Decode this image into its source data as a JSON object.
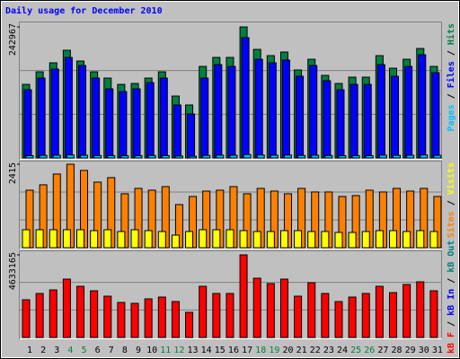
{
  "chart_data": {
    "type": "bar",
    "title": "Daily usage for December 2010",
    "categories": [
      "1",
      "2",
      "3",
      "4",
      "5",
      "6",
      "7",
      "8",
      "9",
      "10",
      "11",
      "12",
      "13",
      "14",
      "15",
      "16",
      "17",
      "18",
      "19",
      "20",
      "21",
      "22",
      "23",
      "24",
      "25",
      "26",
      "27",
      "28",
      "29",
      "30",
      "31"
    ],
    "highlight_categories": [
      3,
      4,
      10,
      11,
      17,
      18,
      24,
      25
    ],
    "highlight_color": "#008040",
    "legend_separator": " / ",
    "panels": [
      {
        "ylim": [
          0,
          242967
        ],
        "yticks": [
          242967
        ],
        "series": [
          {
            "name": "Pages",
            "color": "#00C0FF",
            "values": [
              4200,
              4800,
              5100,
              5600,
              4900,
              4500,
              4300,
              4000,
              4200,
              4600,
              4400,
              3500,
              3100,
              4700,
              5200,
              5000,
              6200,
              5400,
              5100,
              5300,
              4600,
              5000,
              4500,
              4100,
              4300,
              4200,
              5200,
              4800,
              5000,
              5500,
              4700
            ]
          },
          {
            "name": "Files",
            "color": "#0000FF",
            "values": [
              126500,
              148100,
              164700,
              186400,
              171400,
              148100,
              128100,
              123100,
              128100,
              139800,
              148100,
              98200,
              81500,
              148100,
              173100,
              169700,
              223000,
              183000,
              176400,
              181400,
              151400,
              171400,
              143100,
              126500,
              136400,
              136400,
              173100,
              151400,
              169700,
              191400,
              158100
            ]
          },
          {
            "name": "Hits",
            "color": "#008040",
            "values": [
              136400,
              159700,
              176400,
              199700,
              179700,
              159700,
              148100,
              136400,
              138100,
              148100,
              159700,
              114800,
              98200,
              169700,
              186400,
              186400,
              242967,
              201300,
              189700,
              196400,
              163100,
              183000,
              153100,
              138100,
              149800,
              149800,
              189700,
              166400,
              183000,
              203000,
              169700
            ]
          }
        ]
      },
      {
        "ylim": [
          0,
          2415
        ],
        "yticks": [
          2415
        ],
        "series": [
          {
            "name": "Sites",
            "color": "#FF8000",
            "values": [
              1664,
              1820,
              2132,
              2415,
              2236,
              1898,
              2028,
              1560,
              1716,
              1664,
              1768,
              1248,
              1482,
              1638,
              1664,
              1768,
              1560,
              1716,
              1638,
              1560,
              1716,
              1612,
              1612,
              1482,
              1508,
              1664,
              1612,
              1716,
              1638,
              1716,
              1482
            ]
          },
          {
            "name": "Visits",
            "color": "#FFFF00",
            "values": [
              520,
              520,
              520,
              520,
              520,
              494,
              520,
              468,
              520,
              494,
              468,
              364,
              468,
              520,
              520,
              520,
              494,
              468,
              468,
              494,
              494,
              468,
              468,
              442,
              442,
              468,
              494,
              494,
              468,
              494,
              468
            ]
          }
        ]
      },
      {
        "ylim": [
          0,
          4633165
        ],
        "yticks": [
          4633165
        ],
        "series": [
          {
            "name": "kB F",
            "color": "#FF0000",
            "values": [
              2115100,
              2467600,
              2669100,
              3273400,
              2870500,
              2618700,
              2316600,
              1964000,
              1913700,
              2165500,
              2266200,
              2014400,
              1410100,
              2870500,
              2467600,
              2467600,
              4633165,
              3323800,
              3021600,
              3273400,
              2316600,
              3072000,
              2467600,
              2014400,
              2266200,
              2467600,
              2870500,
              2518000,
              2971200,
              3122300,
              2618700
            ]
          }
        ],
        "extra_legend": [
          {
            "name": "kB In",
            "color": "#0000FF"
          },
          {
            "name": "kB Out",
            "color": "#008080"
          }
        ]
      }
    ]
  }
}
